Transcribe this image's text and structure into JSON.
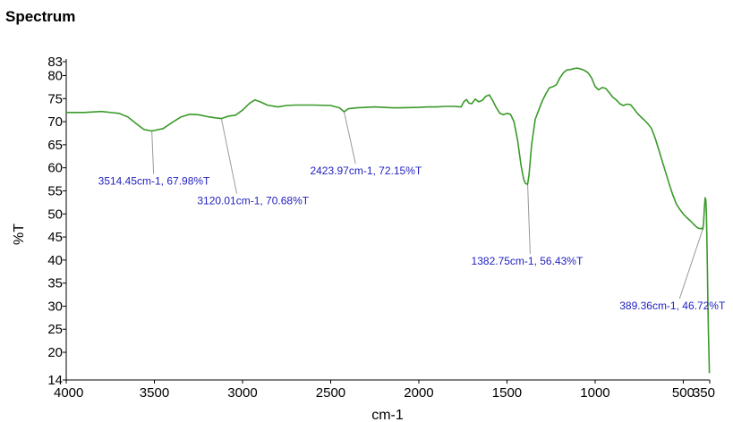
{
  "chart_data": {
    "type": "line",
    "title": "Spectrum",
    "xlabel": "cm-1",
    "ylabel": "%T",
    "xlim": [
      4000,
      350
    ],
    "x_reversed": true,
    "ylim": [
      14,
      83
    ],
    "x_ticks": [
      4000,
      3500,
      3000,
      2500,
      2000,
      1500,
      1000,
      500,
      350
    ],
    "y_ticks": [
      14,
      20,
      25,
      30,
      35,
      40,
      45,
      50,
      55,
      60,
      65,
      70,
      75,
      80,
      83
    ],
    "grid": false,
    "legend": false,
    "colors": {
      "line": "#3a9a2a",
      "annotation_text": "#1f1fbf",
      "leader_line": "#999999"
    },
    "series": [
      {
        "x": [
          4000,
          3900,
          3800,
          3700,
          3650,
          3600,
          3560,
          3514,
          3450,
          3400,
          3350,
          3300,
          3250,
          3200,
          3150,
          3120,
          3080,
          3040,
          3000,
          2960,
          2930,
          2900,
          2860,
          2800,
          2750,
          2700,
          2600,
          2500,
          2450,
          2424,
          2400,
          2350,
          2300,
          2250,
          2200,
          2150,
          2100,
          2000,
          1950,
          1900,
          1850,
          1800,
          1760,
          1745,
          1730,
          1715,
          1700,
          1680,
          1660,
          1640,
          1620,
          1600,
          1580,
          1560,
          1540,
          1520,
          1500,
          1480,
          1460,
          1440,
          1420,
          1405,
          1395,
          1383,
          1375,
          1360,
          1340,
          1320,
          1300,
          1280,
          1260,
          1240,
          1220,
          1200,
          1180,
          1160,
          1140,
          1120,
          1100,
          1080,
          1060,
          1040,
          1020,
          1000,
          980,
          960,
          940,
          920,
          900,
          880,
          860,
          840,
          820,
          800,
          780,
          760,
          740,
          720,
          700,
          680,
          660,
          640,
          620,
          600,
          580,
          560,
          540,
          520,
          500,
          480,
          460,
          440,
          420,
          405,
          395,
          389,
          385,
          380,
          376,
          372,
          369,
          366,
          363,
          360,
          357,
          354,
          352
        ],
        "y": [
          72.0,
          72.0,
          72.2,
          71.8,
          71.0,
          69.5,
          68.3,
          67.98,
          68.5,
          69.8,
          71.0,
          71.6,
          71.5,
          71.1,
          70.8,
          70.68,
          71.2,
          71.4,
          72.5,
          74.0,
          74.7,
          74.3,
          73.6,
          73.2,
          73.5,
          73.6,
          73.6,
          73.5,
          73.0,
          72.15,
          72.8,
          73.0,
          73.1,
          73.2,
          73.1,
          73.0,
          73.0,
          73.1,
          73.2,
          73.2,
          73.3,
          73.3,
          73.2,
          74.3,
          74.8,
          74.0,
          73.9,
          74.9,
          74.3,
          74.6,
          75.5,
          75.8,
          74.5,
          73.0,
          71.8,
          71.5,
          71.8,
          71.6,
          70.0,
          66.0,
          60.5,
          57.5,
          56.6,
          56.43,
          58.5,
          65.0,
          70.5,
          72.5,
          74.5,
          76.0,
          77.3,
          77.6,
          78.0,
          79.5,
          80.6,
          81.2,
          81.3,
          81.5,
          81.6,
          81.4,
          81.1,
          80.6,
          79.5,
          77.6,
          76.9,
          77.4,
          77.2,
          76.3,
          75.3,
          74.7,
          73.9,
          73.5,
          73.8,
          73.7,
          72.8,
          71.8,
          71.0,
          70.3,
          69.5,
          68.5,
          66.5,
          64.0,
          61.5,
          59.0,
          56.5,
          54.2,
          52.2,
          51.0,
          50.0,
          49.2,
          48.5,
          47.7,
          47.0,
          46.8,
          46.9,
          46.72,
          48.0,
          51.5,
          53.5,
          53.0,
          50.0,
          45.0,
          38.0,
          30.0,
          24.0,
          19.0,
          15.5
        ]
      }
    ],
    "annotations": [
      {
        "text": "3514.45cm-1, 67.98%T",
        "x": 3514.45,
        "y": 67.98
      },
      {
        "text": "3120.01cm-1, 70.68%T",
        "x": 3120.01,
        "y": 70.68
      },
      {
        "text": "2423.97cm-1, 72.15%T",
        "x": 2423.97,
        "y": 72.15
      },
      {
        "text": "1382.75cm-1, 56.43%T",
        "x": 1382.75,
        "y": 56.43
      },
      {
        "text": "389.36cm-1, 46.72%T",
        "x": 389.36,
        "y": 46.72
      }
    ]
  }
}
